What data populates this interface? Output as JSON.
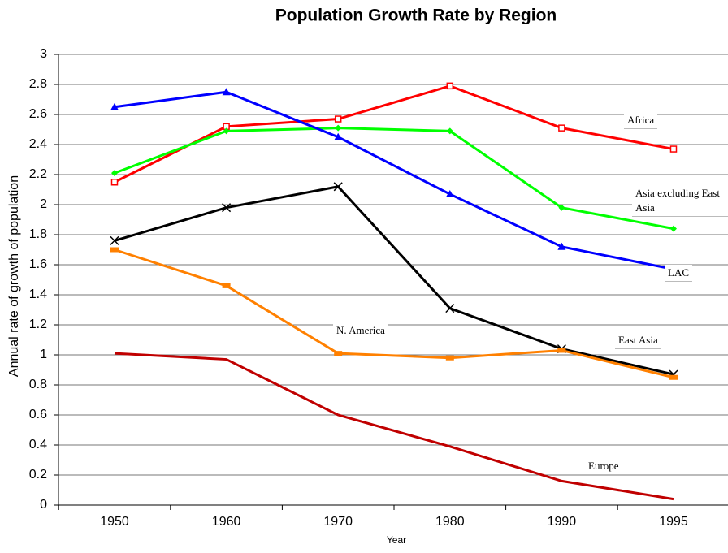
{
  "chart_data": {
    "type": "line",
    "title": "Population Growth Rate by Region",
    "x_label": "Year",
    "y_label": "Annual rate of growth of population",
    "categories": [
      "1950",
      "1960",
      "1970",
      "1980",
      "1990",
      "1995"
    ],
    "ylim": [
      0,
      3
    ],
    "yticks": [
      0,
      0.2,
      0.4,
      0.6,
      0.8,
      1,
      1.2,
      1.4,
      1.6,
      1.8,
      2,
      2.2,
      2.4,
      2.6,
      2.8,
      3
    ],
    "grid": true,
    "series": [
      {
        "name": "Africa",
        "color": "#ff0000",
        "marker": "square",
        "values": [
          2.15,
          2.52,
          2.57,
          2.79,
          2.51,
          2.37
        ]
      },
      {
        "name": "Asia excluding East Asia",
        "color": "#00ff00",
        "marker": "diamond",
        "values": [
          2.21,
          2.49,
          2.51,
          2.49,
          1.98,
          1.84
        ]
      },
      {
        "name": "LAC",
        "color": "#0000ff",
        "marker": "triangle",
        "values": [
          2.65,
          2.75,
          2.45,
          2.07,
          1.72,
          1.57
        ]
      },
      {
        "name": "East Asia",
        "color": "#000000",
        "marker": "x",
        "values": [
          1.76,
          1.98,
          2.12,
          1.31,
          1.04,
          0.87
        ]
      },
      {
        "name": "N. America",
        "color": "#ff8000",
        "marker": "bar",
        "values": [
          1.7,
          1.46,
          1.01,
          0.98,
          1.03,
          0.85
        ]
      },
      {
        "name": "Europe",
        "color": "#c00000",
        "marker": "none",
        "values": [
          1.01,
          0.97,
          0.6,
          0.39,
          0.16,
          0.04
        ]
      }
    ]
  }
}
